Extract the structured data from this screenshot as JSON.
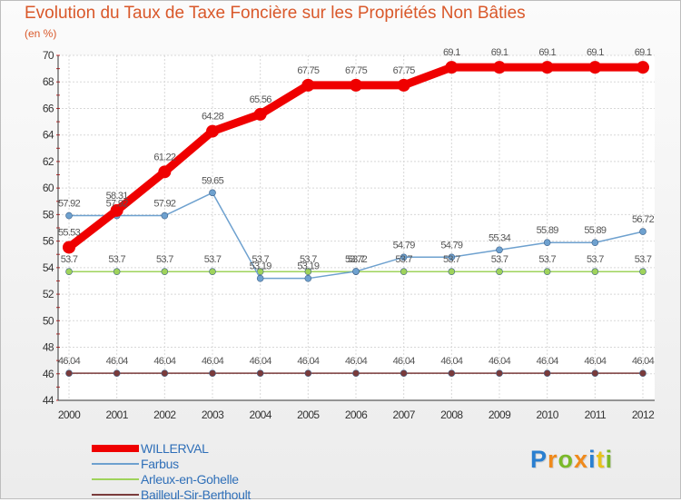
{
  "title": "Evolution du Taux de Taxe Foncière sur les Propriétés Non Bâties",
  "subtitle": "(en %)",
  "logo": {
    "letters": [
      "P",
      "r",
      "o",
      "x",
      "i",
      "t",
      "i"
    ],
    "colors": [
      "#2a7fd0",
      "#f08a1c",
      "#7ab929",
      "#f08a1c",
      "#2a7fd0",
      "#e8c21a",
      "#7ab929"
    ]
  },
  "chart_data": {
    "type": "line",
    "title": "Evolution du Taux de Taxe Foncière sur les Propriétés Non Bâties",
    "ylabel": "(en %)",
    "xlabel": "",
    "x": [
      "2000",
      "2001",
      "2002",
      "2003",
      "2004",
      "2005",
      "2006",
      "2007",
      "2008",
      "2009",
      "2010",
      "2011",
      "2012"
    ],
    "ylim": [
      44,
      70
    ],
    "yticks": [
      "44",
      "46",
      "48",
      "50",
      "52",
      "54",
      "56",
      "58",
      "60",
      "62",
      "64",
      "66",
      "68",
      "70"
    ],
    "grid": true,
    "legend_position": "bottom-left",
    "series": [
      {
        "name": "WILLERVAL",
        "color": "#ef0000",
        "values": [
          55.53,
          58.31,
          61.22,
          64.28,
          65.56,
          67.75,
          67.75,
          67.75,
          69.1,
          69.1,
          69.1,
          69.1,
          69.1
        ],
        "labels": [
          "55.53",
          "58.31",
          "61.22",
          "64.28",
          "65.56",
          "67.75",
          "67.75",
          "67.75",
          "69.1",
          "69.1",
          "69.1",
          "69.1",
          "69.1"
        ]
      },
      {
        "name": "Farbus",
        "color": "#6ea1cf",
        "values": [
          57.92,
          57.92,
          57.92,
          59.65,
          53.19,
          53.19,
          53.72,
          54.79,
          54.79,
          55.34,
          55.89,
          55.89,
          56.72
        ],
        "labels": [
          "57.92",
          "57.92",
          "57.92",
          "59.65",
          "53.19",
          "53.19",
          "53.72",
          "54.79",
          "54.79",
          "55.34",
          "55.89",
          "55.89",
          "56.72"
        ]
      },
      {
        "name": "Arleux-en-Gohelle",
        "color": "#9fd35b",
        "values": [
          53.7,
          53.7,
          53.7,
          53.7,
          53.7,
          53.7,
          53.7,
          53.7,
          53.7,
          53.7,
          53.7,
          53.7,
          53.7
        ],
        "labels": [
          "53.7",
          "53.7",
          "53.7",
          "53.7",
          "53.7",
          "53.7",
          "53.7",
          "53.7",
          "53.7",
          "53.7",
          "53.7",
          "53.7",
          "53.7"
        ]
      },
      {
        "name": "Bailleul-Sir-Berthoult",
        "color": "#7a3b3b",
        "values": [
          46.04,
          46.04,
          46.04,
          46.04,
          46.04,
          46.04,
          46.04,
          46.04,
          46.04,
          46.04,
          46.04,
          46.04,
          46.04
        ],
        "labels": [
          "46.04",
          "46.04",
          "46.04",
          "46.04",
          "46.04",
          "46.04",
          "46.04",
          "46.04",
          "46.04",
          "46.04",
          "46.04",
          "46.04",
          "46.04"
        ]
      }
    ]
  }
}
